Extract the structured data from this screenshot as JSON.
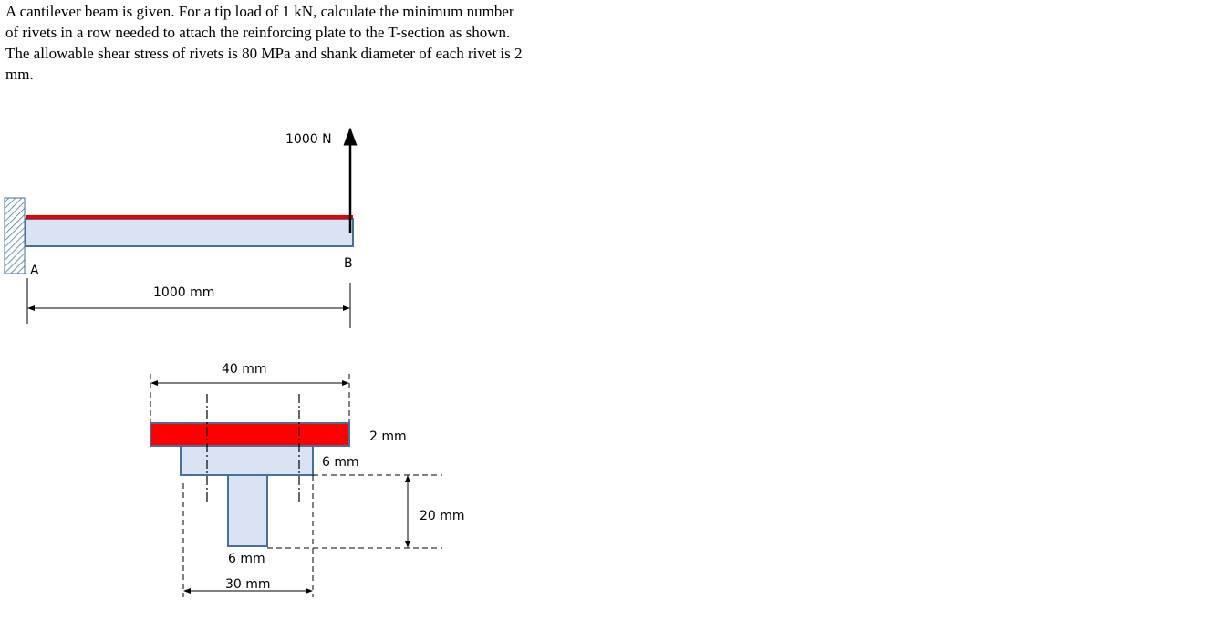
{
  "problem": {
    "lines": [
      "A cantilever beam is given. For a tip load of 1 kN, calculate the minimum number",
      "of rivets in a row needed to attach the reinforcing plate to the T-section as shown.",
      "The allowable shear stress of rivets is 80 MPa and shank diameter of each rivet is 2",
      "mm."
    ]
  },
  "beam": {
    "load": "1000 N",
    "support": "A",
    "tip": "B",
    "length": "1000 mm"
  },
  "section": {
    "plate_width": "40 mm",
    "plate_thickness": "2 mm",
    "flange_thickness": "6 mm",
    "web_height": "20 mm",
    "web_thickness": "6 mm",
    "flange_width": "30 mm"
  }
}
